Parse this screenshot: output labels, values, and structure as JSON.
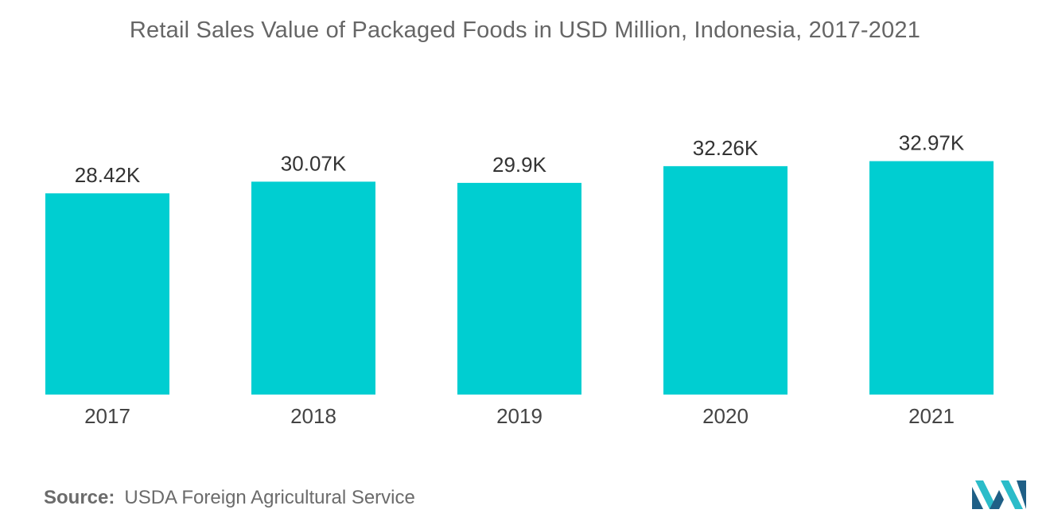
{
  "chart_data": {
    "type": "bar",
    "title": "Retail Sales Value of Packaged Foods in USD Million, Indonesia, 2017-2021",
    "categories": [
      "2017",
      "2018",
      "2019",
      "2020",
      "2021"
    ],
    "values": [
      28420,
      30070,
      29900,
      32260,
      32970
    ],
    "data_labels": [
      "28.42K",
      "30.07K",
      "29.9K",
      "32.26K",
      "32.97K"
    ],
    "ylim": [
      0,
      35000
    ],
    "grid": false,
    "legend": "none",
    "bar_color": "#00CED1",
    "xlabel": "",
    "ylabel": ""
  },
  "source": {
    "label": "Source:",
    "text": "USDA Foreign Agricultural Service"
  },
  "colors": {
    "bar": "#00CED1",
    "text": "#555555",
    "logo_dark": "#1f5f86",
    "logo_light": "#2bbcc9"
  },
  "logo": {
    "icon": "mordor-intelligence-logo-icon"
  }
}
